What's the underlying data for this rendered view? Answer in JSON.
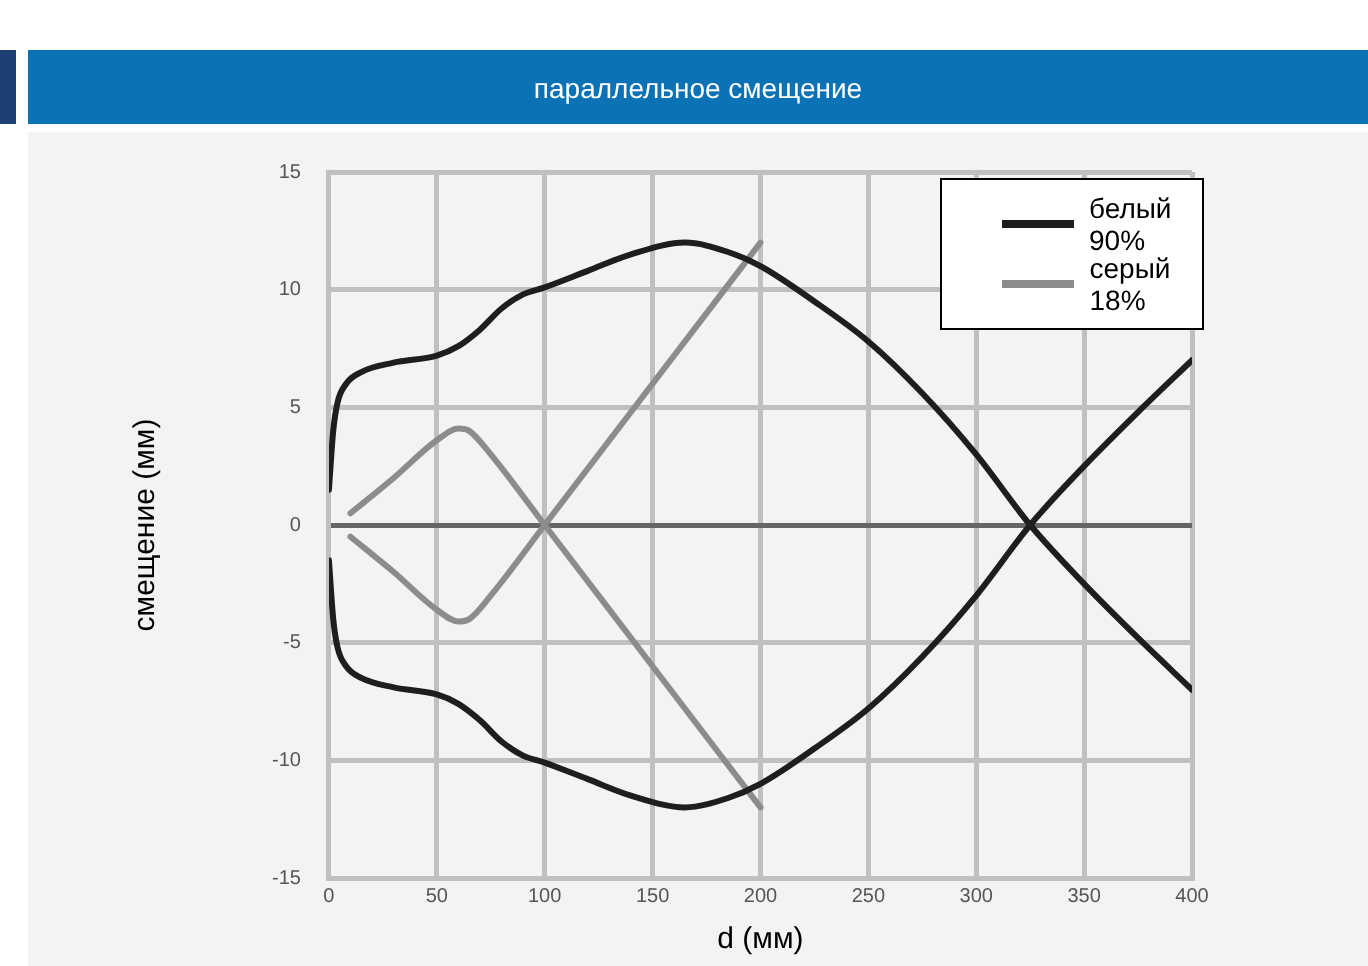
{
  "chart_data": {
    "type": "line",
    "title": "параллельное смещение",
    "xlabel": "d (мм)",
    "ylabel": "смещение (мм)",
    "xlim": [
      0,
      400
    ],
    "xticks": [
      0,
      50,
      100,
      150,
      200,
      250,
      300,
      350,
      400
    ],
    "ylim": [
      -15,
      15
    ],
    "yticks": [
      -15,
      -10,
      -5,
      0,
      5,
      10,
      15
    ],
    "grid": true,
    "legend": "top right",
    "marker": "none",
    "line_style": "solid",
    "series": [
      {
        "name": "белый 90%",
        "color": "#1e1e1e",
        "x": [
          0,
          2,
          4,
          8,
          15,
          30,
          50,
          60,
          70,
          80,
          90,
          100,
          120,
          140,
          165,
          185,
          200,
          225,
          250,
          275,
          300,
          325,
          350,
          375,
          400
        ],
        "values": [
          1.5,
          4,
          5.2,
          6,
          6.5,
          6.9,
          7.2,
          7.6,
          8.3,
          9.2,
          9.8,
          10.1,
          10.8,
          11.5,
          12,
          11.6,
          11,
          9.5,
          7.8,
          5.6,
          3,
          0,
          -2.5,
          -4.8,
          -7
        ]
      },
      {
        "color": "#1e1e1e",
        "x": [
          0,
          2,
          4,
          8,
          15,
          30,
          50,
          60,
          70,
          80,
          90,
          100,
          120,
          140,
          165,
          185,
          200,
          225,
          250,
          275,
          300,
          325,
          350,
          375,
          400
        ],
        "values": [
          -1.5,
          -4,
          -5.2,
          -6,
          -6.5,
          -6.9,
          -7.2,
          -7.6,
          -8.3,
          -9.2,
          -9.8,
          -10.1,
          -10.8,
          -11.5,
          -12,
          -11.6,
          -11,
          -9.5,
          -7.8,
          -5.6,
          -3,
          0,
          2.5,
          4.8,
          7
        ]
      },
      {
        "name": "серый 18%",
        "color": "#8c8c8c",
        "x": [
          10,
          30,
          50,
          60,
          65,
          75,
          100,
          150,
          200
        ],
        "values": [
          0.5,
          2,
          3.6,
          4.1,
          4,
          3,
          0,
          -6,
          -12
        ]
      },
      {
        "color": "#8c8c8c",
        "x": [
          10,
          30,
          50,
          60,
          65,
          75,
          100,
          150,
          200
        ],
        "values": [
          -0.5,
          -2,
          -3.6,
          -4.1,
          -4,
          -3,
          0,
          6,
          12
        ]
      }
    ]
  }
}
